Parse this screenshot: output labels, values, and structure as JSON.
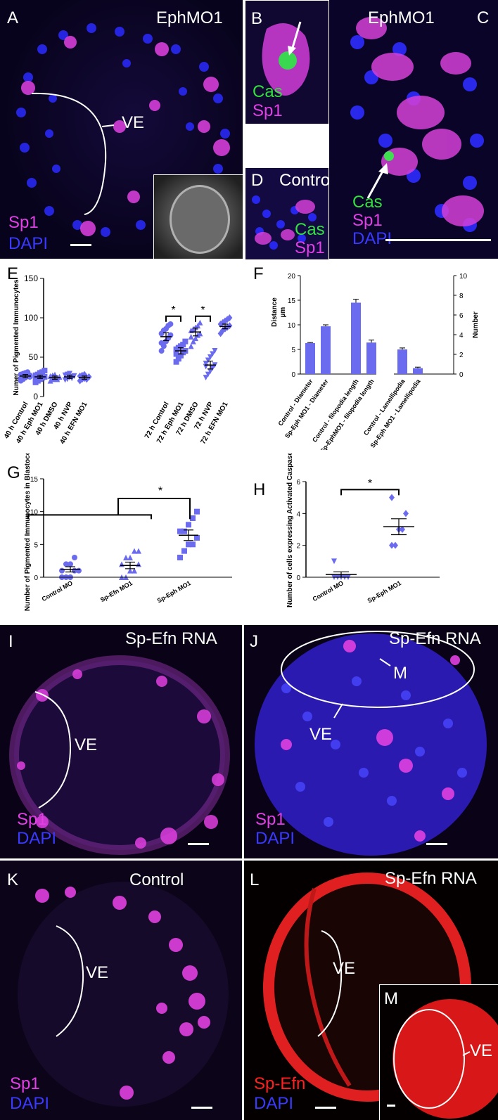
{
  "panels_top": {
    "A": {
      "letter": "A",
      "title": "EphMO1",
      "ve": "VE",
      "stain1": "Sp1",
      "stain2": "DAPI"
    },
    "B": {
      "letter": "B",
      "stain1": "Cas",
      "stain2": "Sp1"
    },
    "C": {
      "letter": "C",
      "title": "EphMO1",
      "stain1": "Cas",
      "stain2": "Sp1",
      "stain3": "DAPI"
    },
    "D": {
      "letter": "D",
      "title": "Control",
      "stain1": "Cas",
      "stain2": "Sp1"
    }
  },
  "panels_bottom": {
    "I": {
      "letter": "I",
      "title": "Sp-Efn RNA",
      "ve": "VE",
      "stain1": "Sp1",
      "stain2": "DAPI"
    },
    "J": {
      "letter": "J",
      "title": "Sp-Efn RNA",
      "ve": "VE",
      "m": "M",
      "stain1": "Sp1",
      "stain2": "DAPI"
    },
    "K": {
      "letter": "K",
      "title": "Control",
      "ve": "VE",
      "stain1": "Sp1",
      "stain2": "DAPI"
    },
    "L": {
      "letter": "L",
      "title": "Sp-Efn RNA",
      "ve": "VE",
      "stain1": "Sp-Efn",
      "stain2": "DAPI"
    },
    "M": {
      "letter": "M",
      "ve": "VE"
    }
  },
  "chart_data": [
    {
      "panel": "E",
      "type": "scatter",
      "ylabel": "Numer of Pigmented Immunocytes",
      "ylim": [
        0,
        150
      ],
      "yticks": [
        0,
        50,
        100,
        150
      ],
      "categories": [
        "40 h Control",
        "40 h Eph MO1",
        "40 h DMSO",
        "40 h NVP",
        "40 h EFN MO1",
        "72 h Control",
        "72 h Eph MO1",
        "72 h DMSO",
        "72 h NVP",
        "72 h EFN MO1"
      ],
      "means": [
        26,
        25,
        24,
        25,
        24,
        76,
        58,
        82,
        40,
        89
      ],
      "sem": [
        2,
        2,
        2,
        2,
        2,
        5,
        4,
        5,
        5,
        3
      ],
      "points": [
        [
          20,
          22,
          24,
          26,
          27,
          28,
          29,
          30,
          31,
          25,
          23,
          27
        ],
        [
          18,
          20,
          22,
          24,
          25,
          27,
          28,
          30,
          31,
          33,
          21,
          26
        ],
        [
          20,
          22,
          23,
          24,
          25,
          26,
          27,
          28,
          22,
          25
        ],
        [
          21,
          22,
          24,
          25,
          26,
          27,
          28,
          29,
          23,
          26
        ],
        [
          20,
          22,
          23,
          24,
          25,
          26,
          27,
          28,
          22,
          25
        ],
        [
          58,
          64,
          70,
          74,
          78,
          80,
          84,
          86,
          90,
          92,
          68
        ],
        [
          44,
          48,
          52,
          56,
          58,
          60,
          62,
          64,
          66,
          70,
          54
        ],
        [
          64,
          70,
          74,
          78,
          80,
          84,
          86,
          88,
          90,
          94,
          76
        ],
        [
          24,
          28,
          32,
          36,
          40,
          42,
          46,
          50,
          54,
          58,
          38
        ],
        [
          80,
          84,
          86,
          88,
          90,
          92,
          94,
          96,
          98,
          100
        ]
      ],
      "sig": "*"
    },
    {
      "panel": "F",
      "type": "bar",
      "ylabel": "Distance µm",
      "y2label": "Number",
      "ylim": [
        0,
        20
      ],
      "yticks": [
        0,
        5,
        10,
        15,
        20
      ],
      "y2lim": [
        0,
        10
      ],
      "y2ticks": [
        0,
        2,
        4,
        6,
        8,
        10
      ],
      "categories": [
        "Control - Diameter",
        "Sp-Eph MO1 - Diameter",
        "Control - filopodia length",
        "Sp-EphMO1 - filopodia length",
        "Control - Lamellipodia",
        "Sp-Eph MO1 - Lamellipodia"
      ],
      "values": [
        6.3,
        9.7,
        14.5,
        6.4,
        2.5,
        0.6
      ],
      "errors": [
        0.1,
        0.3,
        0.7,
        0.5,
        0.15,
        0.1
      ],
      "axis": [
        "left",
        "left",
        "left",
        "left",
        "right",
        "right"
      ]
    },
    {
      "panel": "G",
      "type": "scatter",
      "ylabel": "Number of Pigmented Immunocytes in Blastocoel",
      "ylim": [
        0,
        15
      ],
      "yticks": [
        0,
        5,
        10,
        15
      ],
      "categories": [
        "Control MO",
        "Sp-Efn MO1",
        "Sp-Eph MO1"
      ],
      "means": [
        1.2,
        1.8,
        6.4
      ],
      "sem": [
        0.4,
        0.5,
        0.8
      ],
      "points": [
        [
          0,
          0,
          0,
          1,
          1,
          1,
          2,
          2,
          3
        ],
        [
          0,
          0,
          1,
          1,
          2,
          2,
          3,
          3,
          4,
          4
        ],
        [
          3,
          4,
          5,
          5,
          6,
          7,
          7,
          8,
          9,
          10
        ]
      ],
      "sig": "*"
    },
    {
      "panel": "H",
      "type": "scatter",
      "ylabel": "Number of cells expressing Activated Caspase",
      "ylim": [
        0,
        6
      ],
      "yticks": [
        0,
        2,
        4,
        6
      ],
      "categories": [
        "Control MO",
        "Sp-Eph MO1"
      ],
      "means": [
        0.17,
        3.17
      ],
      "sem": [
        0.17,
        0.5
      ],
      "points": [
        [
          0,
          0,
          0,
          0,
          0,
          1
        ],
        [
          2,
          2,
          3,
          3,
          4,
          5
        ]
      ],
      "sig": "*"
    }
  ]
}
